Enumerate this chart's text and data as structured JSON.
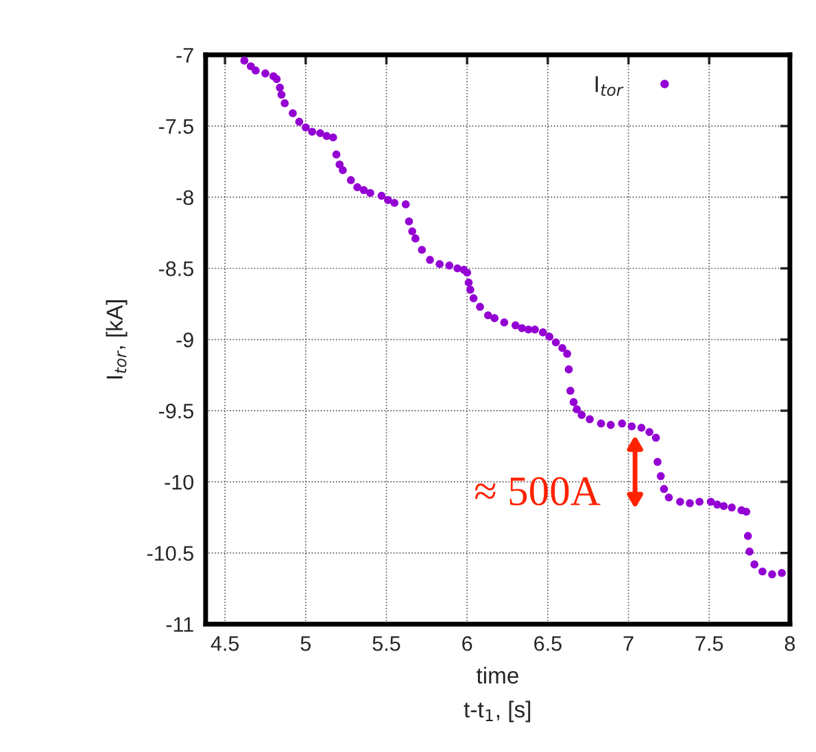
{
  "chart_data": {
    "type": "scatter",
    "xlabel": "t-t$_{1}$, [s]",
    "ylabel": "I$_{tor}$, [kA]",
    "annotations": [
      "≈ 500A",
      "time"
    ],
    "x": [
      4.62,
      4.66,
      4.69,
      4.75,
      4.8,
      4.82,
      4.84,
      4.85,
      4.87,
      4.92,
      4.96,
      5.0,
      5.04,
      5.09,
      5.13,
      5.17,
      5.19,
      5.21,
      5.23,
      5.28,
      5.32,
      5.36,
      5.4,
      5.47,
      5.51,
      5.55,
      5.62,
      5.64,
      5.66,
      5.68,
      5.72,
      5.77,
      5.83,
      5.89,
      5.94,
      5.98,
      6.0,
      6.01,
      6.02,
      6.04,
      6.08,
      6.13,
      6.17,
      6.23,
      6.3,
      6.34,
      6.38,
      6.42,
      6.47,
      6.51,
      6.55,
      6.59,
      6.62,
      6.63,
      6.64,
      6.66,
      6.68,
      6.71,
      6.76,
      6.83,
      6.89,
      6.96,
      7.02,
      7.08,
      7.13,
      7.17,
      7.18,
      7.2,
      7.22,
      7.25,
      7.32,
      7.38,
      7.44,
      7.51,
      7.55,
      7.59,
      7.64,
      7.7,
      7.73,
      7.74,
      7.75,
      7.78,
      7.83,
      7.89,
      7.95
    ],
    "series": [
      {
        "name": "I$_{tor}$",
        "color": "#9400d3",
        "values": [
          -7.04,
          -7.08,
          -7.11,
          -7.13,
          -7.15,
          -7.17,
          -7.23,
          -7.28,
          -7.34,
          -7.41,
          -7.47,
          -7.51,
          -7.54,
          -7.55,
          -7.57,
          -7.58,
          -7.7,
          -7.77,
          -7.81,
          -7.88,
          -7.93,
          -7.95,
          -7.97,
          -7.99,
          -8.02,
          -8.04,
          -8.05,
          -8.17,
          -8.24,
          -8.29,
          -8.37,
          -8.44,
          -8.47,
          -8.48,
          -8.5,
          -8.51,
          -8.53,
          -8.6,
          -8.65,
          -8.71,
          -8.77,
          -8.83,
          -8.85,
          -8.88,
          -8.9,
          -8.92,
          -8.93,
          -8.93,
          -8.95,
          -8.98,
          -9.02,
          -9.06,
          -9.1,
          -9.21,
          -9.36,
          -9.44,
          -9.49,
          -9.53,
          -9.56,
          -9.59,
          -9.6,
          -9.59,
          -9.61,
          -9.62,
          -9.65,
          -9.69,
          -9.86,
          -9.96,
          -10.05,
          -10.11,
          -10.14,
          -10.15,
          -10.14,
          -10.14,
          -10.16,
          -10.17,
          -10.18,
          -10.2,
          -10.21,
          -10.38,
          -10.49,
          -10.58,
          -10.63,
          -10.65,
          -10.64
        ]
      }
    ],
    "xlim": [
      4.38,
      8
    ],
    "ylim": [
      -11,
      -7
    ],
    "xticks": [
      4.5,
      5,
      5.5,
      6,
      6.5,
      7,
      7.5,
      8
    ],
    "yticks": [
      -11,
      -10.5,
      -10,
      -9.5,
      -9,
      -8.5,
      -8,
      -7.5,
      -7
    ],
    "grid": true,
    "legend": "top right",
    "marker": "circle"
  }
}
